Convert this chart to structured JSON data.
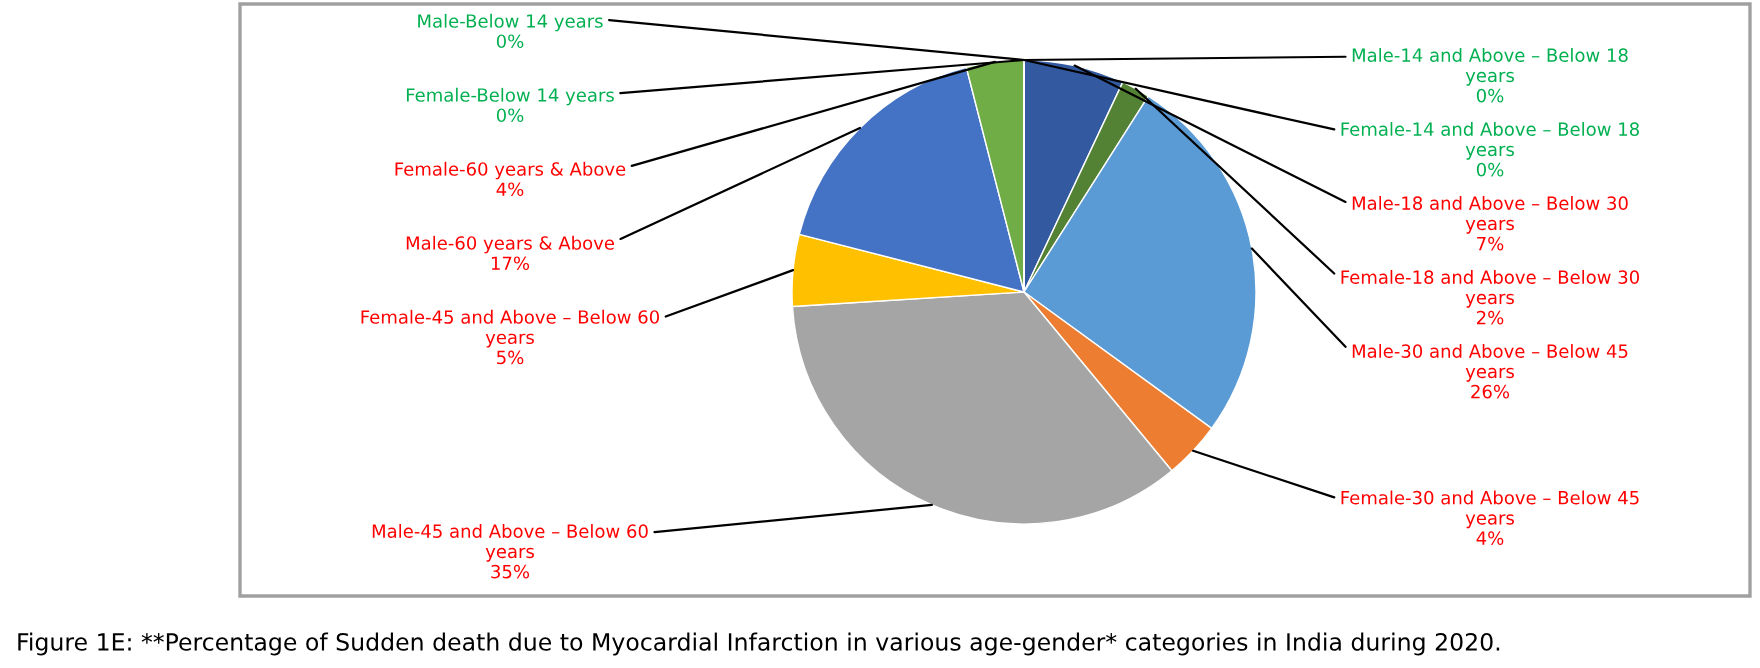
{
  "chart_data": {
    "type": "pie",
    "categories": [
      "Male-14 and Above – Below 18 years",
      "Female-14 and Above – Below 18 years",
      "Male-18 and Above – Below 30 years",
      "Female-18 and Above – Below 30 years",
      "Male-30 and Above – Below 45 years",
      "Female-30 and Above – Below 45 years",
      "Male-45 and Above – Below 60 years",
      "Female-45 and Above – Below 60 years",
      "Male-60 years & Above",
      "Female-60 years & Above",
      "Male-Below 14 years",
      "Female-Below 14 years"
    ],
    "values": [
      0,
      0,
      7,
      2,
      26,
      4,
      35,
      5,
      17,
      4,
      0,
      0
    ],
    "colors": [
      "#9e480e",
      "#636363",
      "#335aa0",
      "#548235",
      "#5b9bd5",
      "#ed7d31",
      "#a5a5a5",
      "#ffc000",
      "#4472c4",
      "#70ad47",
      "#997300",
      "#a5a5a5"
    ],
    "value_labels": [
      "0%",
      "0%",
      "7%",
      "2%",
      "26%",
      "4%",
      "35%",
      "5%",
      "17%",
      "4%",
      "0%",
      "0%"
    ],
    "legend": false,
    "annotations": [
      "Figure 1E: **Percentage of Sudden death due to Myocardial Infarction in various age-gender* categories in India during 2020."
    ]
  }
}
